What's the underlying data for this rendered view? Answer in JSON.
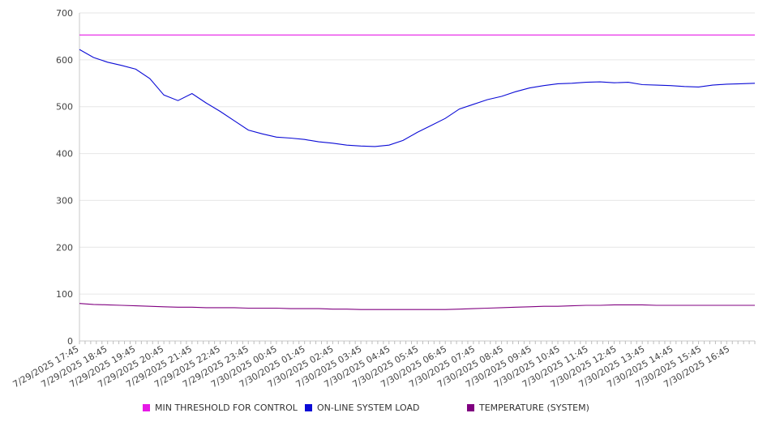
{
  "chart_data": {
    "type": "line",
    "title": "",
    "xlabel": "",
    "ylabel": "",
    "ylim": [
      0,
      700
    ],
    "yticks": [
      0,
      100,
      200,
      300,
      400,
      500,
      600,
      700
    ],
    "grid": true,
    "legend_position": "bottom",
    "x_tick_labels": [
      "7/29/2025 17:45",
      "7/29/2025 18:45",
      "7/29/2025 19:45",
      "7/29/2025 20:45",
      "7/29/2025 21:45",
      "7/29/2025 22:45",
      "7/29/2025 23:45",
      "7/30/2025 00:45",
      "7/30/2025 01:45",
      "7/30/2025 02:45",
      "7/30/2025 03:45",
      "7/30/2025 04:45",
      "7/30/2025 05:45",
      "7/30/2025 06:45",
      "7/30/2025 07:45",
      "7/30/2025 08:45",
      "7/30/2025 09:45",
      "7/30/2025 10:45",
      "7/30/2025 11:45",
      "7/30/2025 12:45",
      "7/30/2025 13:45",
      "7/30/2025 14:45",
      "7/30/2025 15:45",
      "7/30/2025 16:45"
    ],
    "x": [
      "7/29/2025 17:45",
      "7/29/2025 18:15",
      "7/29/2025 18:45",
      "7/29/2025 19:15",
      "7/29/2025 19:45",
      "7/29/2025 20:15",
      "7/29/2025 20:45",
      "7/29/2025 21:15",
      "7/29/2025 21:45",
      "7/29/2025 22:15",
      "7/29/2025 22:45",
      "7/29/2025 23:15",
      "7/29/2025 23:45",
      "7/30/2025 00:15",
      "7/30/2025 00:45",
      "7/30/2025 01:15",
      "7/30/2025 01:45",
      "7/30/2025 02:15",
      "7/30/2025 02:45",
      "7/30/2025 03:15",
      "7/30/2025 03:45",
      "7/30/2025 04:15",
      "7/30/2025 04:45",
      "7/30/2025 05:15",
      "7/30/2025 05:45",
      "7/30/2025 06:15",
      "7/30/2025 06:45",
      "7/30/2025 07:15",
      "7/30/2025 07:45",
      "7/30/2025 08:15",
      "7/30/2025 08:45",
      "7/30/2025 09:15",
      "7/30/2025 09:45",
      "7/30/2025 10:15",
      "7/30/2025 10:45",
      "7/30/2025 11:15",
      "7/30/2025 11:45",
      "7/30/2025 12:15",
      "7/30/2025 12:45",
      "7/30/2025 13:15",
      "7/30/2025 13:45",
      "7/30/2025 14:15",
      "7/30/2025 14:45",
      "7/30/2025 15:15",
      "7/30/2025 15:45",
      "7/30/2025 16:15",
      "7/30/2025 16:45",
      "7/30/2025 17:15",
      "7/30/2025 17:45"
    ],
    "series": [
      {
        "name": "MIN THRESHOLD FOR CONTROL",
        "color": "#e619e6",
        "values": [
          653,
          653,
          653,
          653,
          653,
          653,
          653,
          653,
          653,
          653,
          653,
          653,
          653,
          653,
          653,
          653,
          653,
          653,
          653,
          653,
          653,
          653,
          653,
          653,
          653,
          653,
          653,
          653,
          653,
          653,
          653,
          653,
          653,
          653,
          653,
          653,
          653,
          653,
          653,
          653,
          653,
          653,
          653,
          653,
          653,
          653,
          653,
          653,
          653
        ]
      },
      {
        "name": "ON-LINE SYSTEM LOAD",
        "color": "#0b0bd6",
        "values": [
          622,
          605,
          595,
          588,
          580,
          560,
          525,
          513,
          528,
          508,
          490,
          470,
          450,
          442,
          435,
          433,
          430,
          425,
          422,
          418,
          416,
          415,
          418,
          428,
          445,
          460,
          475,
          495,
          505,
          515,
          522,
          532,
          540,
          545,
          549,
          550,
          552,
          553,
          551,
          552,
          547,
          546,
          545,
          543,
          542,
          546,
          548,
          549,
          550
        ]
      },
      {
        "name": "TEMPERATURE (SYSTEM)",
        "color": "#800080",
        "values": [
          80,
          78,
          77,
          76,
          75,
          74,
          73,
          72,
          72,
          71,
          71,
          71,
          70,
          70,
          70,
          69,
          69,
          69,
          68,
          68,
          67,
          67,
          67,
          67,
          67,
          67,
          67,
          68,
          69,
          70,
          71,
          72,
          73,
          74,
          74,
          75,
          76,
          76,
          77,
          77,
          77,
          76,
          76,
          76,
          76,
          76,
          76,
          76,
          76
        ]
      }
    ]
  }
}
